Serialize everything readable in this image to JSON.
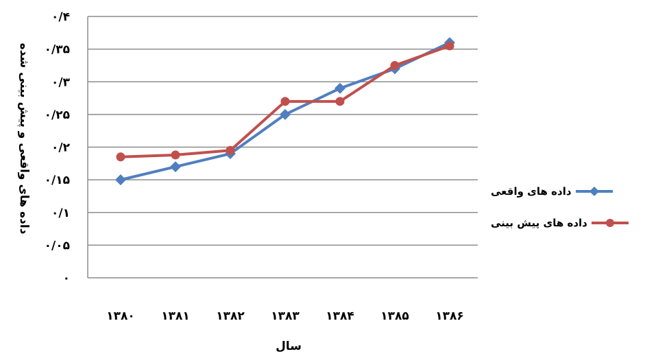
{
  "chart_data": {
    "type": "line",
    "categories": [
      "۱۳۸۰",
      "۱۳۸۱",
      "۱۳۸۲",
      "۱۳۸۳",
      "۱۳۸۴",
      "۱۳۸۵",
      "۱۳۸۶"
    ],
    "series": [
      {
        "name": "داده های واقعی",
        "color": "#4f7fbf",
        "marker": "diamond",
        "values": [
          0.15,
          0.17,
          0.19,
          0.25,
          0.29,
          0.32,
          0.36
        ]
      },
      {
        "name": "داده های پیش بینی",
        "color": "#c0504d",
        "marker": "circle",
        "values": [
          0.185,
          0.188,
          0.195,
          0.27,
          0.27,
          0.325,
          0.355
        ]
      }
    ],
    "xlabel": "سال",
    "ylabel": "داده های واقعی و پیش بینی شده",
    "ylim": [
      0,
      0.4
    ],
    "yticks": [
      0,
      0.05,
      0.1,
      0.15,
      0.2,
      0.25,
      0.3,
      0.35,
      0.4
    ],
    "ytick_labels": [
      "۰",
      "۰/۰۵",
      "۰/۱",
      "۰/۱۵",
      "۰/۲",
      "۰/۲۵",
      "۰/۳",
      "۰/۳۵",
      "۰/۴"
    ],
    "grid": true,
    "legend_position": "right"
  }
}
